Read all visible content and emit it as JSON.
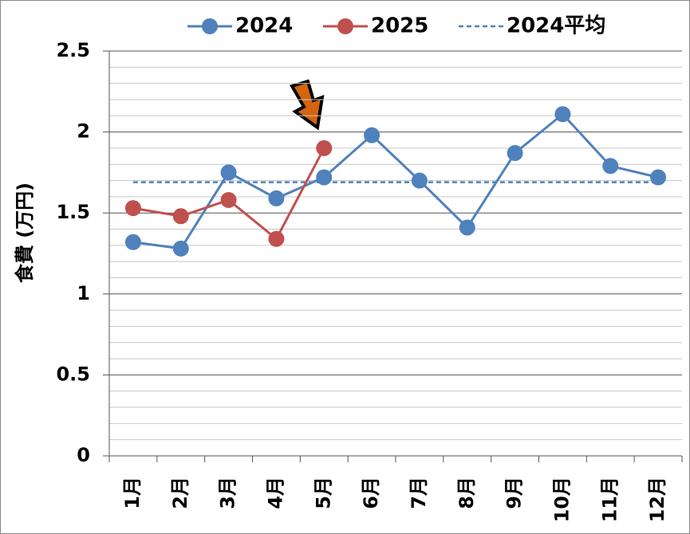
{
  "chart_data": {
    "type": "line",
    "y_label": "食費 (万円)",
    "categories": [
      "1月",
      "2月",
      "3月",
      "4月",
      "5月",
      "6月",
      "7月",
      "8月",
      "9月",
      "10月",
      "11月",
      "12月"
    ],
    "series": [
      {
        "name": "2024",
        "color": "#4f81bd",
        "values": [
          1.32,
          1.28,
          1.75,
          1.59,
          1.72,
          1.98,
          1.7,
          1.41,
          1.87,
          2.11,
          1.79,
          1.72
        ]
      },
      {
        "name": "2025",
        "color": "#c0504d",
        "values": [
          1.53,
          1.48,
          1.58,
          1.34,
          1.9,
          null,
          null,
          null,
          null,
          null,
          null,
          null
        ]
      }
    ],
    "average": {
      "name": "2024平均",
      "color": "#4f81bd",
      "value": 1.69,
      "dashed": true
    },
    "ylim": [
      0,
      2.5
    ],
    "yticks": [
      0,
      0.5,
      1,
      1.5,
      2,
      2.5
    ],
    "yminorticks": [
      0.1,
      0.2,
      0.3,
      0.4,
      0.6,
      0.7,
      0.8,
      0.9,
      1.1,
      1.2,
      1.3,
      1.4,
      1.6,
      1.7,
      1.8,
      1.9,
      2.1,
      2.2,
      2.3,
      2.4
    ],
    "grid": true,
    "legend": "top"
  }
}
